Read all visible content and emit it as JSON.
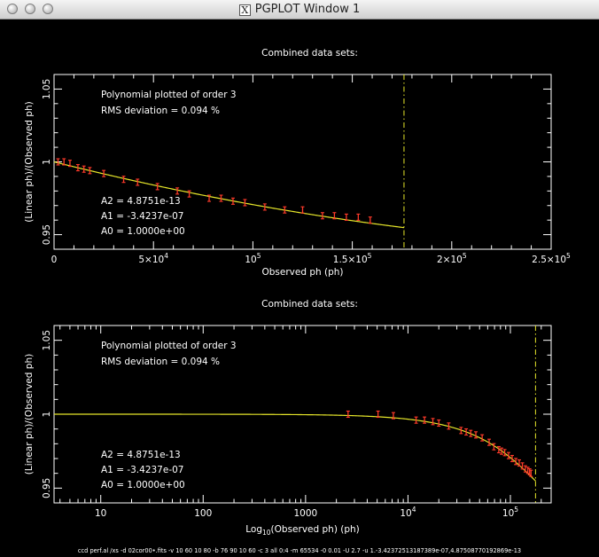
{
  "window": {
    "title": "PGPLOT Window 1",
    "title_icon": "x11-icon"
  },
  "colors": {
    "background": "#000000",
    "axes": "#ffffff",
    "fit_curve": "#e6e62a",
    "data_points": "#ff3a2a",
    "marker_line": "#e6e62a"
  },
  "command_line": "ccd perf.al /xs -d 02cor00•.fits -v 10 60 10 80 -b 76 90 10 60 -c 3 all 0:4 -m 65534 -0 0.01 -U 2.7 -u 1.-3.42372513187389e-07,4.87508770192869e-13",
  "chart_data": [
    {
      "type": "scatter",
      "title": "Combined data sets:",
      "xlabel": "Observed ph (ph)",
      "ylabel": "(Linear ph)/(Observed ph)",
      "xlim": [
        0,
        250000
      ],
      "ylim": [
        0.94,
        1.06
      ],
      "x_ticks": [
        {
          "v": 0,
          "m": "0",
          "e": ""
        },
        {
          "v": 50000,
          "m": "5×10",
          "e": "4"
        },
        {
          "v": 100000,
          "m": "10",
          "e": "5"
        },
        {
          "v": 150000,
          "m": "1.5×10",
          "e": "5"
        },
        {
          "v": 200000,
          "m": "2×10",
          "e": "5"
        },
        {
          "v": 250000,
          "m": "2.5×10",
          "e": "5"
        }
      ],
      "y_ticks": [
        {
          "v": 0.95,
          "label": "0.95"
        },
        {
          "v": 1.0,
          "label": "1"
        },
        {
          "v": 1.05,
          "label": "1.05"
        }
      ],
      "annotations_top": [
        "Polynomial plotted of order  3",
        "RMS deviation =     0.094  %"
      ],
      "annotations_bottom": [
        "A2 = 4.8751e-13",
        "A1 = -3.4237e-07",
        "A0 = 1.0000e+00"
      ],
      "vertical_marker_x": 176000,
      "fit": {
        "coefficients": [
          1.0,
          -3.4237e-07,
          4.8751e-13
        ],
        "x_range": [
          0,
          176000
        ]
      },
      "points": {
        "x": [
          2000,
          5000,
          8000,
          12000,
          15000,
          18000,
          25000,
          35000,
          42000,
          52000,
          62000,
          68000,
          78000,
          84000,
          90000,
          96000,
          106000,
          116000,
          125000,
          135000,
          141000,
          147000,
          153000,
          159000
        ],
        "y": [
          1.0,
          1.0,
          0.999,
          0.996,
          0.995,
          0.994,
          0.992,
          0.988,
          0.986,
          0.983,
          0.98,
          0.978,
          0.975,
          0.975,
          0.973,
          0.972,
          0.969,
          0.967,
          0.967,
          0.963,
          0.963,
          0.962,
          0.962,
          0.96
        ]
      }
    },
    {
      "type": "scatter",
      "title": "Combined data sets:",
      "xlabel_main": "Log",
      "xlabel_sub": "10",
      "xlabel_rest": "(Observed ph) (ph)",
      "ylabel": "(Linear ph)/(Observed ph)",
      "xscale": "log",
      "xlim": [
        3.5,
        250000
      ],
      "ylim": [
        0.94,
        1.06
      ],
      "x_ticks": [
        {
          "v": 10,
          "m": "10",
          "e": ""
        },
        {
          "v": 100,
          "m": "100",
          "e": ""
        },
        {
          "v": 1000,
          "m": "1000",
          "e": ""
        },
        {
          "v": 10000,
          "m": "10",
          "e": "4"
        },
        {
          "v": 100000,
          "m": "10",
          "e": "5"
        }
      ],
      "y_ticks": [
        {
          "v": 0.95,
          "label": "0.95"
        },
        {
          "v": 1.0,
          "label": "1"
        },
        {
          "v": 1.05,
          "label": "1.05"
        }
      ],
      "annotations_top": [
        "Polynomial plotted of order  3",
        "RMS deviation =     0.094  %"
      ],
      "annotations_bottom": [
        "A2 = 4.8751e-13",
        "A1 = -3.4237e-07",
        "A0 = 1.0000e+00"
      ],
      "vertical_marker_x": 176000,
      "fit": {
        "coefficients": [
          1.0,
          -3.4237e-07,
          4.8751e-13
        ],
        "x_range": [
          3.5,
          176000
        ]
      },
      "points": {
        "x": [
          2600,
          5100,
          7200,
          12000,
          14500,
          17500,
          20000,
          25000,
          33000,
          37000,
          41000,
          46000,
          53000,
          62000,
          69000,
          77000,
          82000,
          88000,
          96000,
          104000,
          113000,
          122000,
          131000,
          140000,
          148000,
          154000,
          159000
        ],
        "y": [
          1.0,
          1.0,
          0.999,
          0.996,
          0.996,
          0.995,
          0.994,
          0.992,
          0.989,
          0.988,
          0.987,
          0.986,
          0.984,
          0.981,
          0.978,
          0.976,
          0.975,
          0.974,
          0.972,
          0.97,
          0.968,
          0.967,
          0.965,
          0.963,
          0.962,
          0.961,
          0.96
        ]
      }
    }
  ]
}
